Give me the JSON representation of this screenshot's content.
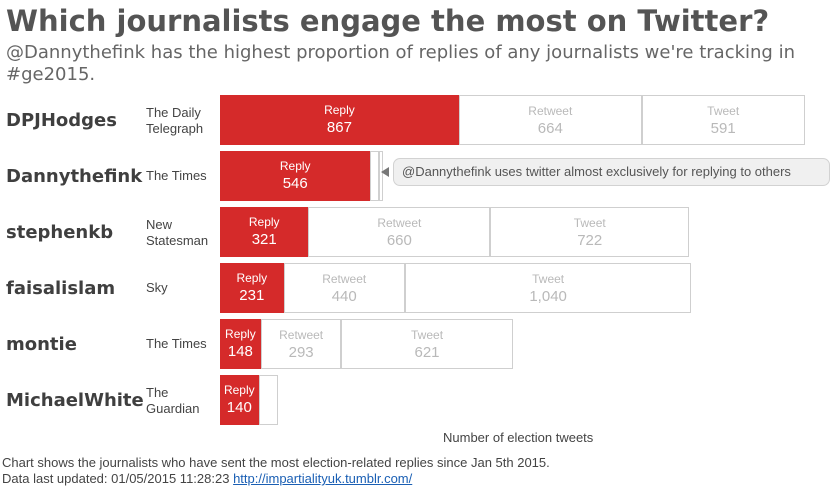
{
  "header": {
    "title": "Which journalists engage the most on Twitter?",
    "subtitle": "@Dannythefink has the highest proportion of replies of any journalists we're tracking in #ge2015."
  },
  "callout": {
    "text": "@Dannythefink uses twitter almost exclusively for replying to others"
  },
  "footer": {
    "line1": "Chart shows the journalists who have sent the most election-related replies since Jan 5th 2015.",
    "line2_prefix": "Data last updated: 01/05/2015 11:28:23",
    "link_text": "http://impartialityuk.tumblr.com/"
  },
  "colors": {
    "reply": "#d52a2a",
    "outline": "#cfcfcf",
    "text_muted": "#b9b9b9"
  },
  "chart_data": {
    "type": "bar",
    "orientation": "horizontal",
    "stacked": true,
    "xlabel": "Number of election tweets",
    "categories": [
      "DPJHodges",
      "Dannythefink",
      "stephenkb",
      "faisalislam",
      "montie",
      "MichaelWhite"
    ],
    "outlets": [
      "The Daily Telegraph",
      "The Times",
      "New Statesman",
      "Sky",
      "The Times",
      "The Guardian"
    ],
    "series": [
      {
        "name": "Reply",
        "values": [
          867,
          546,
          321,
          231,
          148,
          140
        ],
        "value_labels": [
          "867",
          "546",
          "321",
          "231",
          "148",
          "140"
        ]
      },
      {
        "name": "Retweet",
        "values": [
          664,
          30,
          660,
          440,
          293,
          70
        ],
        "value_labels": [
          "664",
          "",
          "660",
          "440",
          "293",
          ""
        ]
      },
      {
        "name": "Tweet",
        "values": [
          591,
          15,
          722,
          1040,
          621,
          0
        ],
        "value_labels": [
          "591",
          "",
          "722",
          "1,040",
          "621",
          ""
        ]
      }
    ],
    "segment_labels": [
      [
        "Reply",
        "Retweet",
        "Tweet"
      ],
      [
        "Reply",
        "",
        ""
      ],
      [
        "Reply",
        "Retweet",
        "Tweet"
      ],
      [
        "Reply",
        "Retweet",
        "Tweet"
      ],
      [
        "Reply",
        "Retweet",
        "Tweet"
      ],
      [
        "Reply",
        "",
        ""
      ]
    ],
    "grid": false,
    "legend": "none"
  }
}
